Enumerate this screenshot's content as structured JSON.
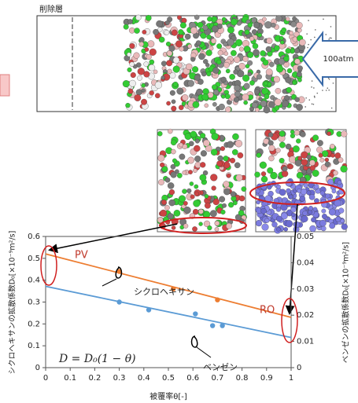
{
  "figure": {
    "deleted_layer_label": "削除層",
    "pressure_label": "100atm"
  },
  "chart_data": {
    "type": "scatter",
    "x_label": "被覆率θ[-]",
    "y_label": "シクロヘキサンの拡散係数D₀[×10⁻⁹m²/s]",
    "y2_label": "ベンゼンの拡散係数D₀[×10⁻⁹m²/s]",
    "xlim": [
      0,
      1
    ],
    "xticks": [
      0,
      0.1,
      0.2,
      0.3,
      0.4,
      0.5,
      0.6,
      0.7,
      0.8,
      0.9,
      1
    ],
    "ylim": [
      0,
      0.6
    ],
    "yticks": [
      0,
      0.1,
      0.2,
      0.3,
      0.4,
      0.5,
      0.6
    ],
    "y2lim": [
      0,
      0.05
    ],
    "y2ticks": [
      0,
      0.01,
      0.02,
      0.03,
      0.04,
      0.05
    ],
    "grid": false,
    "series": [
      {
        "mode": "markers",
        "color": "#ed7d31",
        "axis": "y",
        "x": [
          0.3,
          0.52,
          0.7
        ],
        "values": [
          0.44,
          0.36,
          0.31
        ]
      },
      {
        "mode": "line",
        "color": "#ed7d31",
        "axis": "y",
        "x": [
          0,
          1
        ],
        "values": [
          0.52,
          0.23
        ]
      },
      {
        "mode": "markers",
        "color": "#5b9bd5",
        "axis": "y2",
        "x": [
          0.3,
          0.42,
          0.61,
          0.68,
          0.72
        ],
        "values": [
          0.025,
          0.022,
          0.0205,
          0.016,
          0.016
        ]
      },
      {
        "mode": "line",
        "color": "#5b9bd5",
        "axis": "y2",
        "x": [
          0,
          1
        ],
        "values": [
          0.031,
          0.0115
        ]
      }
    ],
    "annotations": [
      "PV",
      "RO",
      "シクロヘキサン",
      "ベンゼン",
      "D = D₀(1 − θ)"
    ]
  }
}
